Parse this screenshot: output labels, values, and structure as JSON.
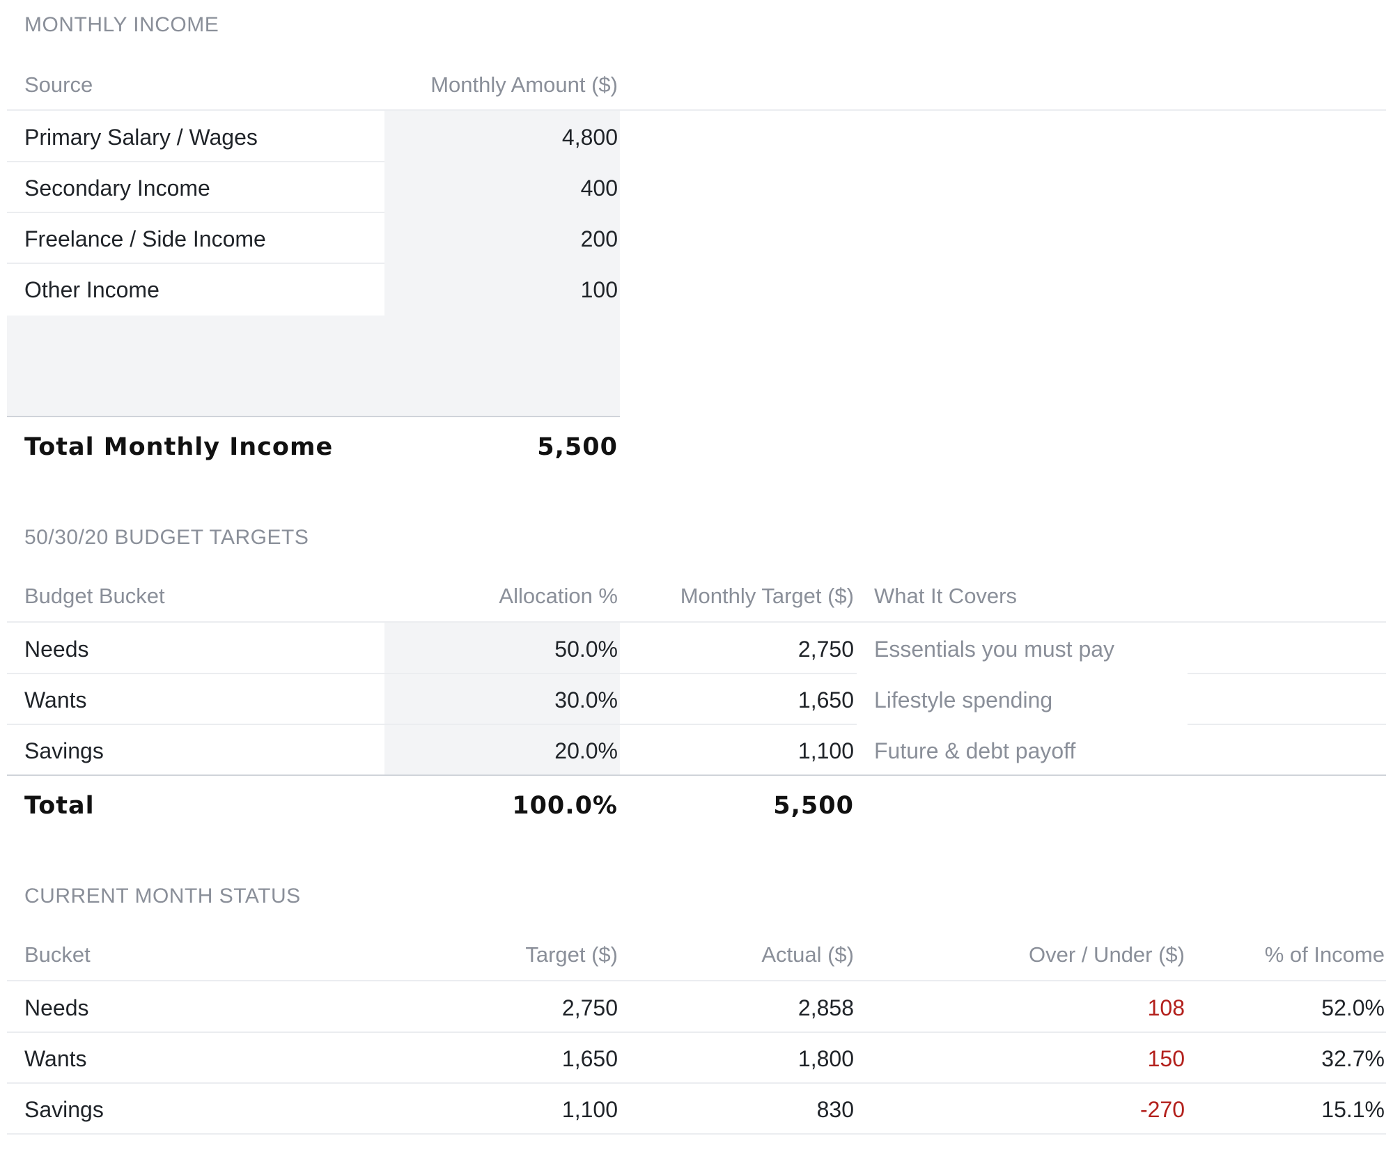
{
  "income": {
    "title": "MONTHLY INCOME",
    "headers": {
      "source": "Source",
      "amount": "Monthly Amount ($)"
    },
    "rows": [
      {
        "source": "Primary Salary / Wages",
        "amount": "4,800"
      },
      {
        "source": "Secondary Income",
        "amount": "400"
      },
      {
        "source": "Freelance / Side Income",
        "amount": "200"
      },
      {
        "source": "Other Income",
        "amount": "100"
      }
    ],
    "total": {
      "label": "Total Monthly Income",
      "amount": "5,500"
    }
  },
  "targets": {
    "title": "50/30/20 BUDGET TARGETS",
    "headers": {
      "bucket": "Budget Bucket",
      "allocation": "Allocation %",
      "target": "Monthly Target ($)",
      "covers": "What It Covers"
    },
    "rows": [
      {
        "bucket": "Needs",
        "allocation": "50.0%",
        "target": "2,750",
        "covers": "Essentials you must pay"
      },
      {
        "bucket": "Wants",
        "allocation": "30.0%",
        "target": "1,650",
        "covers": "Lifestyle spending"
      },
      {
        "bucket": "Savings",
        "allocation": "20.0%",
        "target": "1,100",
        "covers": "Future & debt payoff"
      }
    ],
    "total": {
      "label": "Total",
      "allocation": "100.0%",
      "target": "5,500"
    }
  },
  "status": {
    "title": "CURRENT MONTH STATUS",
    "headers": {
      "bucket": "Bucket",
      "target": "Target ($)",
      "actual": "Actual ($)",
      "over_under": "Over / Under ($)",
      "pct_income": "% of Income"
    },
    "rows": [
      {
        "bucket": "Needs",
        "target": "2,750",
        "actual": "2,858",
        "over_under": "108",
        "pct_income": "52.0%"
      },
      {
        "bucket": "Wants",
        "target": "1,650",
        "actual": "1,800",
        "over_under": "150",
        "pct_income": "32.7%"
      },
      {
        "bucket": "Savings",
        "target": "1,100",
        "actual": "830",
        "over_under": "-270",
        "pct_income": "15.1%"
      }
    ]
  },
  "colors": {
    "over_under_text": "#b3201c",
    "input_shade": "#f3f4f6",
    "header_text": "#8a8f99"
  }
}
